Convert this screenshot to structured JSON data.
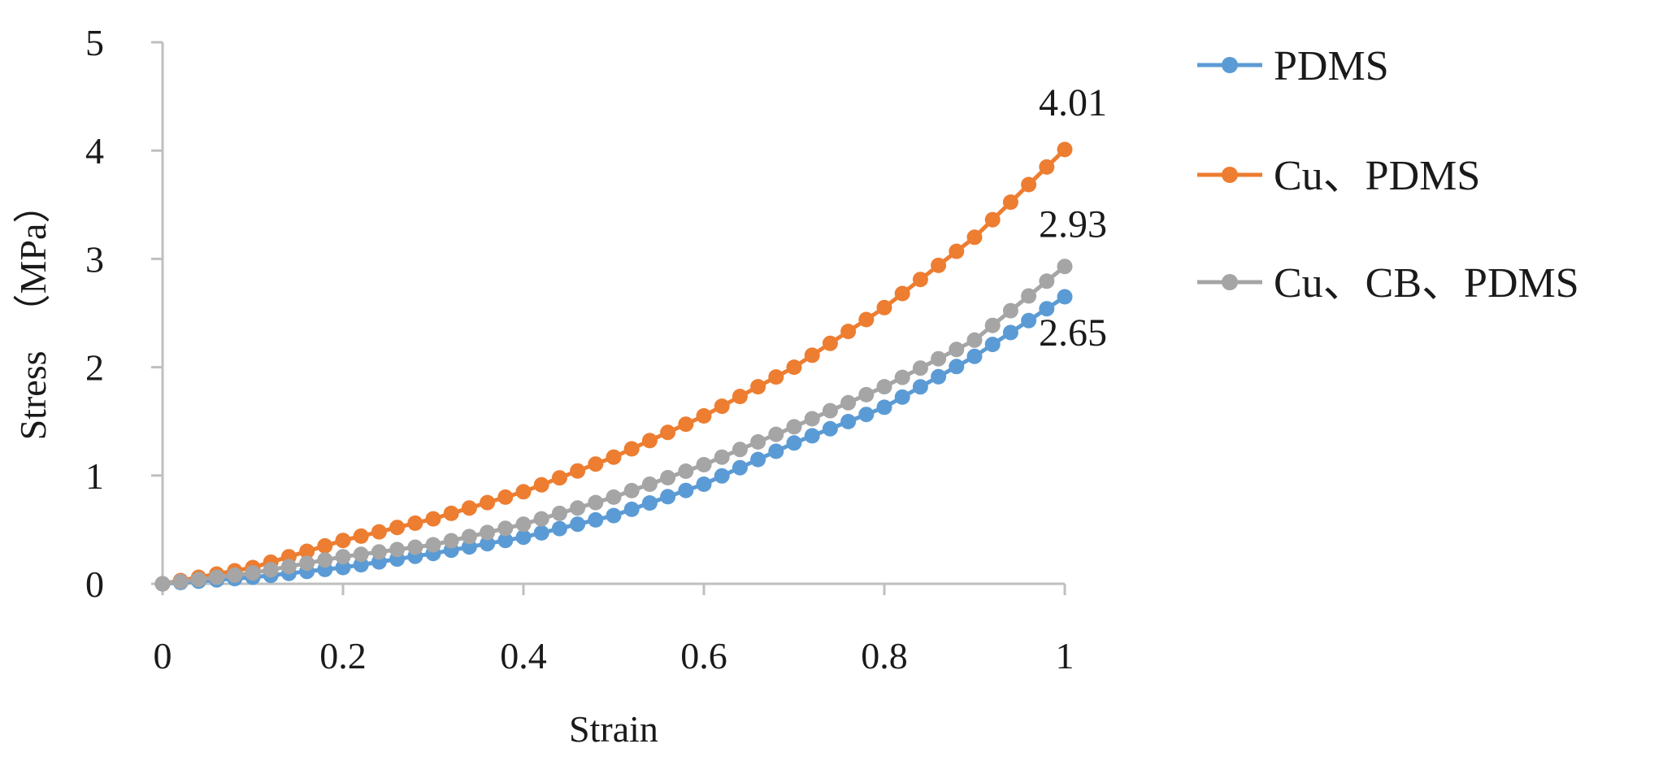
{
  "chart_data": {
    "type": "line",
    "title": "",
    "xlabel": "Strain",
    "ylabel_text": "Stress",
    "ylabel_unit": "（MPa）",
    "xlim": [
      0,
      1
    ],
    "ylim": [
      0,
      5
    ],
    "x_ticks": [
      "0",
      "0.2",
      "0.4",
      "0.6",
      "0.8",
      "1"
    ],
    "x_tick_values": [
      0,
      0.2,
      0.4,
      0.6,
      0.8,
      1
    ],
    "y_ticks": [
      "0",
      "1",
      "2",
      "3",
      "4",
      "5"
    ],
    "y_tick_values": [
      0,
      1,
      2,
      3,
      4,
      5
    ],
    "grid": false,
    "legend_position": "right",
    "marker": "circle",
    "series": [
      {
        "name": "PDMS",
        "color": "#5b9bd5",
        "points": [
          [
            0,
            0
          ],
          [
            0.1,
            0.06
          ],
          [
            0.2,
            0.15
          ],
          [
            0.3,
            0.28
          ],
          [
            0.4,
            0.43
          ],
          [
            0.5,
            0.63
          ],
          [
            0.6,
            0.92
          ],
          [
            0.7,
            1.3
          ],
          [
            0.8,
            1.63
          ],
          [
            0.9,
            2.1
          ],
          [
            1,
            2.65
          ]
        ],
        "end_label": "2.65"
      },
      {
        "name": "Cu、PDMS",
        "color": "#ed7d31",
        "points": [
          [
            0,
            0
          ],
          [
            0.1,
            0.15
          ],
          [
            0.2,
            0.4
          ],
          [
            0.3,
            0.6
          ],
          [
            0.4,
            0.85
          ],
          [
            0.5,
            1.17
          ],
          [
            0.6,
            1.55
          ],
          [
            0.7,
            2.0
          ],
          [
            0.8,
            2.55
          ],
          [
            0.9,
            3.2
          ],
          [
            1,
            4.01
          ]
        ],
        "end_label": "4.01"
      },
      {
        "name": "Cu、CB、PDMS",
        "color": "#a5a5a5",
        "points": [
          [
            0,
            0
          ],
          [
            0.1,
            0.1
          ],
          [
            0.2,
            0.25
          ],
          [
            0.3,
            0.36
          ],
          [
            0.4,
            0.55
          ],
          [
            0.5,
            0.8
          ],
          [
            0.6,
            1.1
          ],
          [
            0.7,
            1.45
          ],
          [
            0.8,
            1.82
          ],
          [
            0.9,
            2.25
          ],
          [
            1,
            2.93
          ]
        ],
        "end_label": "2.93"
      }
    ]
  }
}
